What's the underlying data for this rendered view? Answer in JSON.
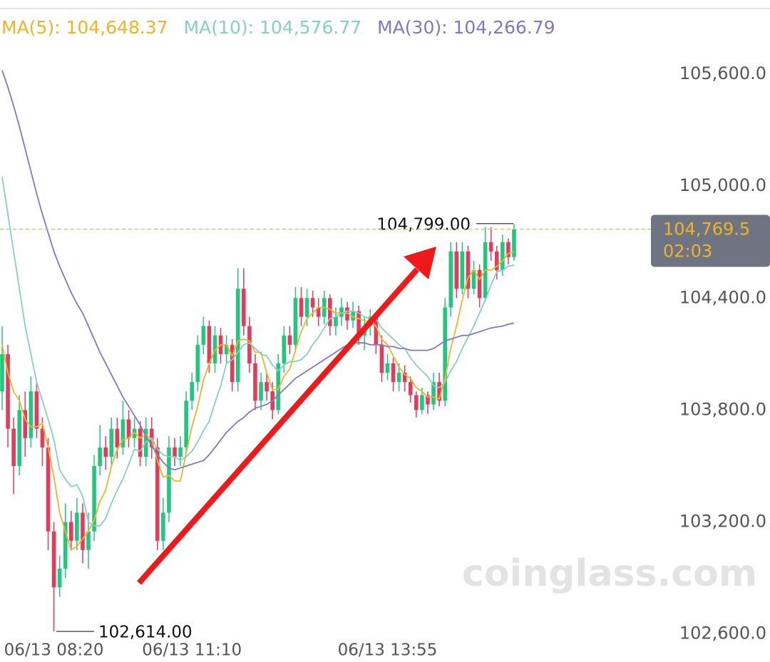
{
  "chart_data": {
    "type": "candlestick",
    "series": [
      {
        "name": "MA(5)",
        "color": "#f0b429",
        "latest": {
          "value": 104648.37,
          "label": "104,648.37"
        },
        "values": [
          104150,
          104000,
          103900,
          103850,
          103750,
          103710,
          103710,
          103730,
          103600,
          103440,
          103250,
          103150,
          103050,
          103070,
          103110,
          103150,
          103210,
          103310,
          103370,
          103500,
          103590,
          103640,
          103650,
          103680,
          103650,
          103670,
          103640,
          103530,
          103440,
          103450,
          103420,
          103420,
          103570,
          103710,
          103820,
          103960,
          104050,
          104120,
          104150,
          104150,
          104090,
          104170,
          104180,
          104170,
          104110,
          104110,
          104000,
          103910,
          103910,
          103980,
          104020,
          104120,
          104220,
          104290,
          104320,
          104350,
          104350,
          104340,
          104320,
          104320,
          104320,
          104300,
          104290,
          104280,
          104270,
          104250,
          104180,
          104150,
          104090,
          104030,
          103990,
          103970,
          103920,
          103900,
          103870,
          103870,
          103860,
          103970,
          104130,
          104250,
          104390,
          104510,
          104550,
          104500,
          104550,
          104550,
          104570,
          104600,
          104640,
          104648.37
        ]
      },
      {
        "name": "MA(10)",
        "color": "#86d0c0",
        "latest": {
          "value": 104576.77,
          "label": "104,576.77"
        },
        "values": [
          105050,
          104850,
          104650,
          104450,
          104250,
          104100,
          103950,
          103850,
          103750,
          103640,
          103480,
          103430,
          103390,
          103400,
          103340,
          103200,
          103180,
          103180,
          103220,
          103300,
          103370,
          103430,
          103510,
          103590,
          103580,
          103630,
          103650,
          103590,
          103560,
          103550,
          103550,
          103530,
          103550,
          103580,
          103630,
          103690,
          103740,
          103840,
          103930,
          104050,
          104070,
          104110,
          104150,
          104160,
          104130,
          104100,
          104090,
          104040,
          104010,
          104040,
          104060,
          104060,
          104070,
          104100,
          104150,
          104190,
          104240,
          104290,
          104300,
          104320,
          104330,
          104330,
          104320,
          104300,
          104290,
          104290,
          104240,
          104210,
          104180,
          104150,
          104130,
          104080,
          104040,
          104010,
          103980,
          103930,
          103920,
          103950,
          104010,
          104060,
          104130,
          104190,
          104250,
          104320,
          104390,
          104470,
          104540,
          104550,
          104570,
          104576.77
        ]
      },
      {
        "name": "MA(30)",
        "color": "#8577bd",
        "latest": {
          "value": 104266.79,
          "label": "104,266.79"
        },
        "values": [
          105620,
          105530,
          105430,
          105320,
          105200,
          105080,
          104960,
          104850,
          104750,
          104650,
          104570,
          104500,
          104430,
          104370,
          104320,
          104250,
          104180,
          104110,
          104050,
          103990,
          103930,
          103870,
          103820,
          103770,
          103720,
          103660,
          103610,
          103560,
          103520,
          103490,
          103480,
          103490,
          103500,
          103510,
          103520,
          103530,
          103560,
          103600,
          103640,
          103680,
          103710,
          103740,
          103760,
          103790,
          103810,
          103820,
          103830,
          103850,
          103880,
          103910,
          103940,
          103970,
          103990,
          104010,
          104030,
          104050,
          104070,
          104090,
          104110,
          104130,
          104150,
          104160,
          104160,
          104160,
          104150,
          104150,
          104150,
          104140,
          104140,
          104130,
          104130,
          104120,
          104120,
          104120,
          104120,
          104130,
          104150,
          104170,
          104180,
          104190,
          104200,
          104200,
          104210,
          104220,
          104230,
          104240,
          104245,
          104250,
          104260,
          104266.79
        ]
      }
    ],
    "categories": [
      null,
      null,
      null,
      null,
      null,
      null,
      null,
      null,
      null,
      "06/13 08:20",
      null,
      null,
      null,
      null,
      null,
      null,
      null,
      null,
      null,
      null,
      null,
      null,
      null,
      null,
      null,
      null,
      null,
      null,
      null,
      null,
      null,
      null,
      null,
      "06/13 11:10",
      null,
      null,
      null,
      null,
      null,
      null,
      null,
      null,
      null,
      null,
      null,
      null,
      null,
      null,
      null,
      null,
      null,
      null,
      null,
      null,
      null,
      null,
      null,
      null,
      null,
      null,
      null,
      null,
      null,
      null,
      null,
      null,
      null,
      "06/13 13:55",
      null,
      null,
      null,
      null,
      null,
      null,
      null,
      null,
      null,
      null,
      null,
      null,
      null,
      null,
      null,
      null,
      null,
      null,
      null,
      null,
      null,
      null
    ],
    "ohlc": [
      [
        103900,
        104250,
        103800,
        104100
      ],
      [
        104100,
        104150,
        103600,
        103700
      ],
      [
        103700,
        103760,
        103350,
        103500
      ],
      [
        103500,
        103880,
        103450,
        103800
      ],
      [
        103800,
        103900,
        103550,
        103650
      ],
      [
        103650,
        103980,
        103600,
        103900
      ],
      [
        103900,
        103950,
        103650,
        103700
      ],
      [
        103700,
        103760,
        103500,
        103600
      ],
      [
        103600,
        103650,
        103050,
        103150
      ],
      [
        103150,
        103200,
        102614,
        102850
      ],
      [
        102850,
        103020,
        102800,
        102950
      ],
      [
        102950,
        103300,
        102900,
        103200
      ],
      [
        103200,
        103260,
        103050,
        103100
      ],
      [
        103100,
        103330,
        103050,
        103250
      ],
      [
        103250,
        103300,
        102980,
        103050
      ],
      [
        103050,
        103250,
        102950,
        103150
      ],
      [
        103150,
        103560,
        103100,
        103500
      ],
      [
        103500,
        103720,
        103450,
        103600
      ],
      [
        103600,
        103660,
        103480,
        103550
      ],
      [
        103550,
        103760,
        103500,
        103700
      ],
      [
        103700,
        103760,
        103540,
        103600
      ],
      [
        103600,
        103850,
        103560,
        103750
      ],
      [
        103750,
        103800,
        103600,
        103650
      ],
      [
        103650,
        103760,
        103600,
        103700
      ],
      [
        103700,
        103740,
        103500,
        103550
      ],
      [
        103550,
        103760,
        103500,
        103700
      ],
      [
        103700,
        103760,
        103540,
        103600
      ],
      [
        103600,
        103650,
        103050,
        103100
      ],
      [
        103100,
        103330,
        103050,
        103250
      ],
      [
        103250,
        103660,
        103200,
        103600
      ],
      [
        103600,
        103650,
        103500,
        103550
      ],
      [
        103550,
        103660,
        103500,
        103600
      ],
      [
        103600,
        103900,
        103560,
        103850
      ],
      [
        103850,
        104000,
        103800,
        103950
      ],
      [
        103950,
        104200,
        103900,
        104150
      ],
      [
        104150,
        104300,
        104100,
        104250
      ],
      [
        104250,
        104280,
        104000,
        104050
      ],
      [
        104050,
        104250,
        104000,
        104200
      ],
      [
        104200,
        104240,
        104050,
        104100
      ],
      [
        104100,
        104200,
        104050,
        104150
      ],
      [
        104150,
        104180,
        103900,
        103950
      ],
      [
        103950,
        104560,
        103900,
        104450
      ],
      [
        104450,
        104560,
        104200,
        104250
      ],
      [
        104250,
        104300,
        104000,
        104050
      ],
      [
        104050,
        104100,
        103800,
        103850
      ],
      [
        103850,
        104000,
        103800,
        103950
      ],
      [
        103950,
        104000,
        103850,
        103900
      ],
      [
        103900,
        103950,
        103750,
        103800
      ],
      [
        103800,
        104100,
        103780,
        104050
      ],
      [
        104050,
        104250,
        104000,
        104200
      ],
      [
        104200,
        104250,
        104100,
        104150
      ],
      [
        104150,
        104460,
        104120,
        104400
      ],
      [
        104400,
        104460,
        104250,
        104300
      ],
      [
        104300,
        104450,
        104250,
        104400
      ],
      [
        104400,
        104440,
        104300,
        104350
      ],
      [
        104350,
        104400,
        104250,
        104300
      ],
      [
        104300,
        104440,
        104260,
        104400
      ],
      [
        104400,
        104420,
        104200,
        104250
      ],
      [
        104250,
        104350,
        104200,
        104300
      ],
      [
        104300,
        104400,
        104250,
        104350
      ],
      [
        104350,
        104380,
        104230,
        104280
      ],
      [
        104280,
        104380,
        104240,
        104330
      ],
      [
        104330,
        104360,
        104150,
        104200
      ],
      [
        104200,
        104300,
        104120,
        104250
      ],
      [
        104250,
        104340,
        104200,
        104300
      ],
      [
        104300,
        104320,
        104100,
        104150
      ],
      [
        104150,
        104200,
        103950,
        104000
      ],
      [
        104000,
        104100,
        103960,
        104050
      ],
      [
        104050,
        104080,
        103900,
        103950
      ],
      [
        103950,
        104050,
        103900,
        104000
      ],
      [
        104000,
        104040,
        103900,
        103950
      ],
      [
        103950,
        103980,
        103840,
        103880
      ],
      [
        103880,
        103900,
        103760,
        103800
      ],
      [
        103800,
        103920,
        103780,
        103880
      ],
      [
        103880,
        103900,
        103780,
        103830
      ],
      [
        103830,
        104000,
        103800,
        103950
      ],
      [
        103950,
        104000,
        103820,
        103850
      ],
      [
        103850,
        104400,
        103820,
        104350
      ],
      [
        104350,
        104700,
        104300,
        104650
      ],
      [
        104650,
        104700,
        104400,
        104450
      ],
      [
        104450,
        104700,
        104420,
        104650
      ],
      [
        104650,
        104680,
        104400,
        104450
      ],
      [
        104450,
        104600,
        104420,
        104550
      ],
      [
        104550,
        104580,
        104350,
        104400
      ],
      [
        104400,
        104780,
        104380,
        104700
      ],
      [
        104700,
        104780,
        104600,
        104650
      ],
      [
        104650,
        104680,
        104500,
        104550
      ],
      [
        104550,
        104740,
        104520,
        104700
      ],
      [
        104700,
        104720,
        104580,
        104620
      ],
      [
        104620,
        104799,
        104600,
        104769.5
      ]
    ],
    "up_color": "#22c77f",
    "down_color": "#e23b5c",
    "ylim": [
      102450,
      105940
    ],
    "yticks": [
      {
        "value": 105600,
        "label": "105,600.0"
      },
      {
        "value": 105000,
        "label": "105,000.0"
      },
      {
        "value": 104400,
        "label": "104,400.0"
      },
      {
        "value": 103800,
        "label": "103,800.0"
      },
      {
        "value": 103200,
        "label": "103,200.0"
      },
      {
        "value": 102600,
        "label": "102,600.0"
      }
    ],
    "max_marker": {
      "value": 104799,
      "label": "104,799.00"
    },
    "min_marker": {
      "value": 102614,
      "label": "102,614.00"
    },
    "last_price": {
      "value": 104769.5,
      "label": "104,769.5"
    },
    "countdown": "02:03",
    "watermark": "coinglass.com"
  }
}
